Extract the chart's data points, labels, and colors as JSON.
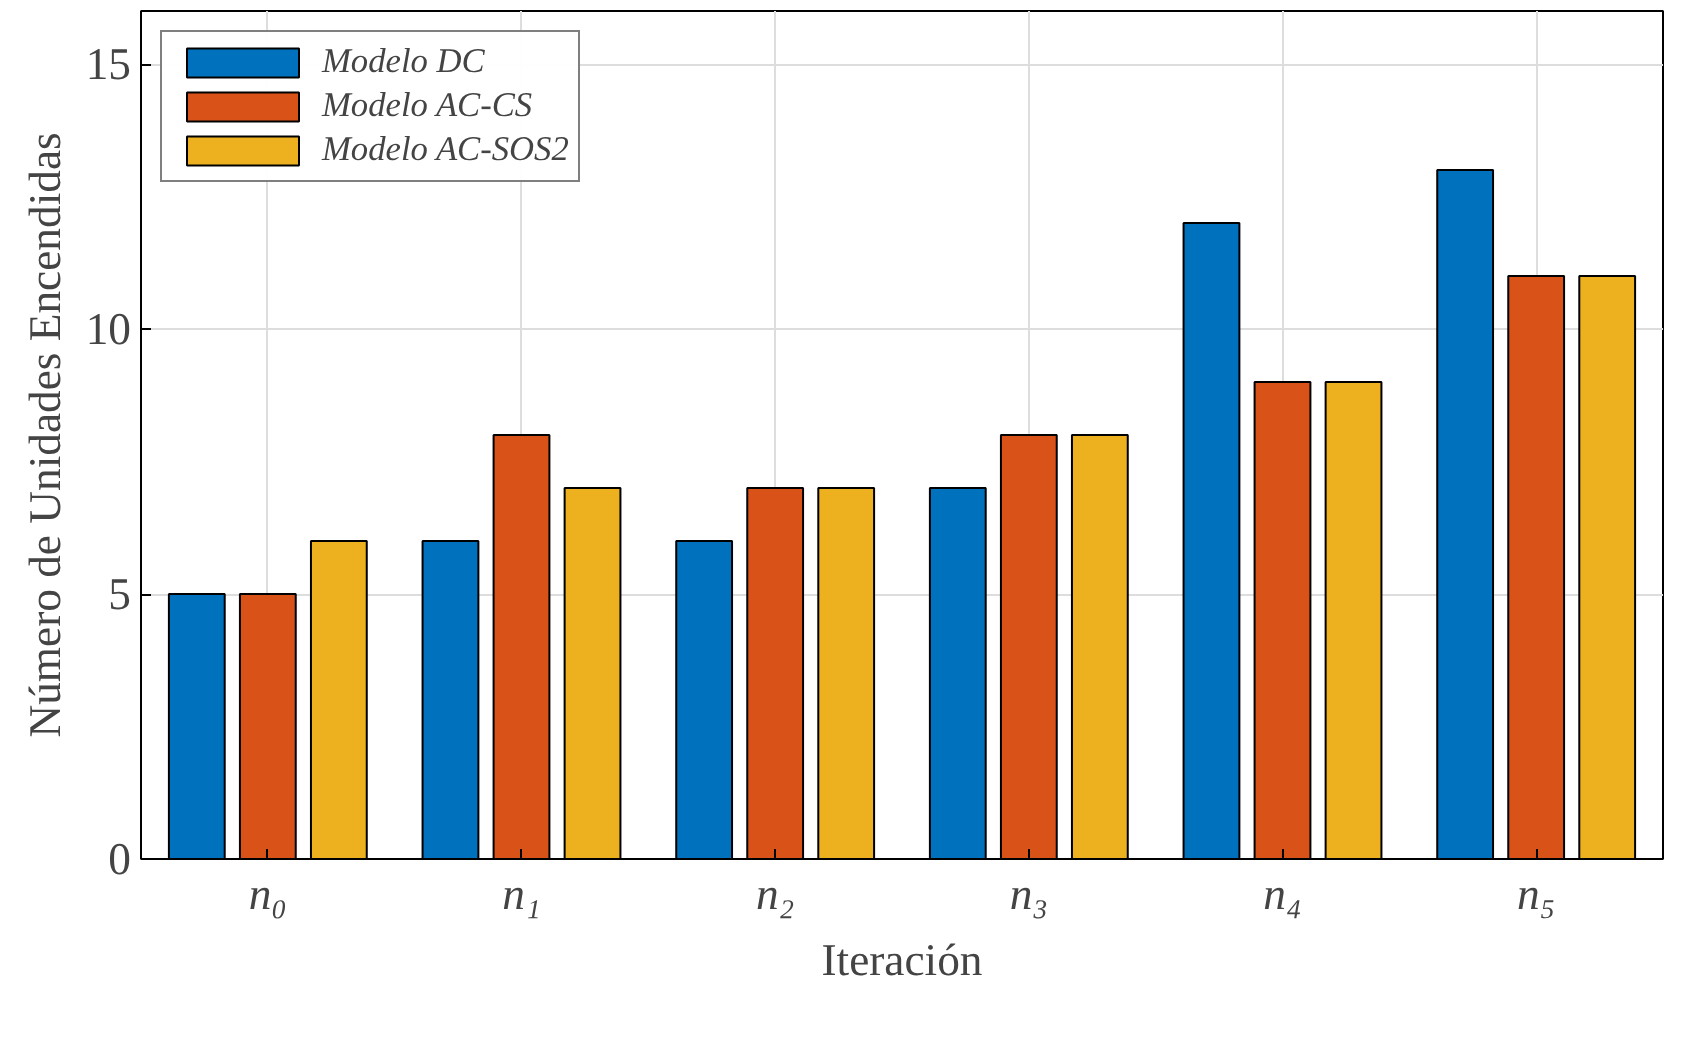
{
  "chart_data": {
    "type": "bar",
    "xlabel": "Iteración",
    "ylabel": "Número de Unidades Encendidas",
    "categories": [
      "n₀",
      "n₁",
      "n₂",
      "n₃",
      "n₄",
      "n₅"
    ],
    "series": [
      {
        "name": "Modelo DC",
        "color": "#0072bd",
        "values": [
          5,
          6,
          6,
          7,
          12,
          13
        ]
      },
      {
        "name": "Modelo AC-CS",
        "color": "#d95319",
        "values": [
          5,
          8,
          7,
          8,
          9,
          11
        ]
      },
      {
        "name": "Modelo AC-SOS2",
        "color": "#edb120",
        "values": [
          6,
          7,
          7,
          8,
          9,
          11
        ]
      }
    ],
    "ylim": [
      0,
      16
    ],
    "yticks": [
      0,
      5,
      10,
      15
    ],
    "grid": true,
    "legend": "top left"
  }
}
